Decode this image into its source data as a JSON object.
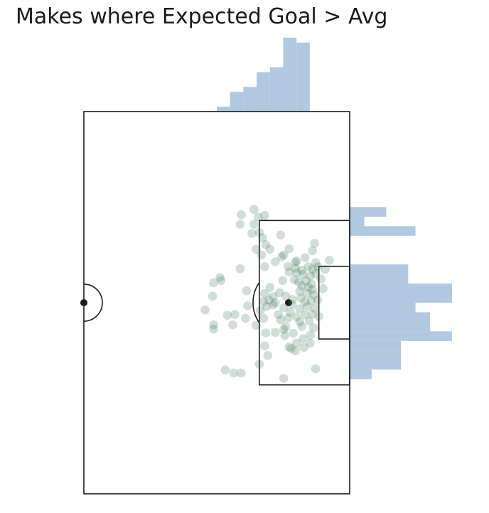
{
  "chart_data": {
    "type": "scatter",
    "title": "Makes where Expected Goal > Avg",
    "pitch": "half-pitch, attacking right",
    "colors": {
      "shots": "#2e6b4f",
      "histogram": "#b0c8e0",
      "lines": "#1a1a1a"
    },
    "xlim": [
      50,
      100
    ],
    "ylim": [
      0,
      100
    ],
    "xlabel": "",
    "ylabel": "",
    "grid": false,
    "points": [
      {
        "x": 79.6,
        "y": 27.0
      },
      {
        "x": 82.0,
        "y": 25.6
      },
      {
        "x": 82.8,
        "y": 27.6
      },
      {
        "x": 84.0,
        "y": 27.2
      },
      {
        "x": 81.6,
        "y": 31.9
      },
      {
        "x": 82.0,
        "y": 29.5
      },
      {
        "x": 83.0,
        "y": 31.6
      },
      {
        "x": 83.6,
        "y": 33.0
      },
      {
        "x": 84.2,
        "y": 34.8
      },
      {
        "x": 82.4,
        "y": 36.0
      },
      {
        "x": 87.0,
        "y": 32.3
      },
      {
        "x": 85.0,
        "y": 36.0
      },
      {
        "x": 87.6,
        "y": 37.5
      },
      {
        "x": 88.6,
        "y": 35.9
      },
      {
        "x": 93.0,
        "y": 36.4
      },
      {
        "x": 93.4,
        "y": 34.5
      },
      {
        "x": 87.2,
        "y": 38.0
      },
      {
        "x": 90.0,
        "y": 39.1
      },
      {
        "x": 86.0,
        "y": 39.3
      },
      {
        "x": 91.6,
        "y": 38.2
      },
      {
        "x": 89.8,
        "y": 41.0
      },
      {
        "x": 92.2,
        "y": 40.6
      },
      {
        "x": 93.0,
        "y": 41.2
      },
      {
        "x": 91.0,
        "y": 41.5
      },
      {
        "x": 94.0,
        "y": 40.6
      },
      {
        "x": 88.6,
        "y": 42.0
      },
      {
        "x": 90.0,
        "y": 42.2
      },
      {
        "x": 91.2,
        "y": 42.6
      },
      {
        "x": 92.6,
        "y": 43.0
      },
      {
        "x": 93.6,
        "y": 42.4
      },
      {
        "x": 87.4,
        "y": 44.2
      },
      {
        "x": 89.6,
        "y": 44.0
      },
      {
        "x": 90.4,
        "y": 44.6
      },
      {
        "x": 91.8,
        "y": 44.3
      },
      {
        "x": 92.8,
        "y": 45.1
      },
      {
        "x": 91.0,
        "y": 45.6
      },
      {
        "x": 92.2,
        "y": 46.0
      },
      {
        "x": 93.0,
        "y": 46.6
      },
      {
        "x": 90.6,
        "y": 47.0
      },
      {
        "x": 92.0,
        "y": 47.6
      },
      {
        "x": 86.8,
        "y": 47.4
      },
      {
        "x": 85.0,
        "y": 46.0
      },
      {
        "x": 84.0,
        "y": 47.6
      },
      {
        "x": 85.6,
        "y": 48.4
      },
      {
        "x": 88.0,
        "y": 48.3
      },
      {
        "x": 89.2,
        "y": 49.2
      },
      {
        "x": 90.8,
        "y": 48.8
      },
      {
        "x": 93.2,
        "y": 47.9
      },
      {
        "x": 91.6,
        "y": 49.8
      },
      {
        "x": 92.8,
        "y": 49.5
      },
      {
        "x": 94.0,
        "y": 49.3
      },
      {
        "x": 95.0,
        "y": 46.3
      },
      {
        "x": 94.6,
        "y": 43.8
      },
      {
        "x": 95.4,
        "y": 41.3
      },
      {
        "x": 96.2,
        "y": 38.9
      },
      {
        "x": 93.6,
        "y": 39.5
      },
      {
        "x": 84.4,
        "y": 51.0
      },
      {
        "x": 83.2,
        "y": 52.0
      },
      {
        "x": 85.6,
        "y": 50.6
      },
      {
        "x": 87.6,
        "y": 51.3
      },
      {
        "x": 89.2,
        "y": 50.5
      },
      {
        "x": 90.6,
        "y": 51.6
      },
      {
        "x": 92.0,
        "y": 51.0
      },
      {
        "x": 93.4,
        "y": 51.5
      },
      {
        "x": 91.6,
        "y": 53.2
      },
      {
        "x": 90.0,
        "y": 53.7
      },
      {
        "x": 88.4,
        "y": 54.0
      },
      {
        "x": 87.0,
        "y": 54.5
      },
      {
        "x": 86.6,
        "y": 53.1
      },
      {
        "x": 88.8,
        "y": 52.5
      },
      {
        "x": 93.0,
        "y": 53.0
      },
      {
        "x": 94.2,
        "y": 53.6
      },
      {
        "x": 92.4,
        "y": 54.8
      },
      {
        "x": 90.6,
        "y": 55.0
      },
      {
        "x": 93.2,
        "y": 56.6
      },
      {
        "x": 91.0,
        "y": 56.2
      },
      {
        "x": 88.0,
        "y": 56.3
      },
      {
        "x": 87.6,
        "y": 57.0
      },
      {
        "x": 86.0,
        "y": 57.8
      },
      {
        "x": 87.8,
        "y": 58.6
      },
      {
        "x": 89.4,
        "y": 58.0
      },
      {
        "x": 91.2,
        "y": 59.4
      },
      {
        "x": 92.6,
        "y": 58.5
      },
      {
        "x": 90.0,
        "y": 60.6
      },
      {
        "x": 88.6,
        "y": 61.6
      },
      {
        "x": 89.8,
        "y": 62.6
      },
      {
        "x": 91.4,
        "y": 61.7
      },
      {
        "x": 92.6,
        "y": 60.6
      },
      {
        "x": 80.6,
        "y": 46.9
      },
      {
        "x": 83.8,
        "y": 49.7
      },
      {
        "x": 84.8,
        "y": 49.3
      },
      {
        "x": 86.0,
        "y": 50.0
      },
      {
        "x": 74.4,
        "y": 44.8
      },
      {
        "x": 75.6,
        "y": 43.4
      },
      {
        "x": 75.8,
        "y": 44.2
      },
      {
        "x": 74.2,
        "y": 48.3
      },
      {
        "x": 72.8,
        "y": 51.9
      },
      {
        "x": 77.0,
        "y": 53.3
      },
      {
        "x": 78.4,
        "y": 53.1
      },
      {
        "x": 74.4,
        "y": 56.9
      },
      {
        "x": 74.4,
        "y": 55.8
      },
      {
        "x": 78.0,
        "y": 55.8
      },
      {
        "x": 80.8,
        "y": 50.8
      },
      {
        "x": 80.4,
        "y": 54.1
      },
      {
        "x": 82.4,
        "y": 55.9
      },
      {
        "x": 83.8,
        "y": 54.1
      },
      {
        "x": 84.2,
        "y": 57.9
      },
      {
        "x": 79.4,
        "y": 41.1
      },
      {
        "x": 84.0,
        "y": 40.6
      },
      {
        "x": 83.4,
        "y": 37.5
      },
      {
        "x": 88.4,
        "y": 40.5
      },
      {
        "x": 89.8,
        "y": 39.4
      },
      {
        "x": 79.4,
        "y": 29.5
      },
      {
        "x": 84.0,
        "y": 61.3
      },
      {
        "x": 84.6,
        "y": 63.8
      },
      {
        "x": 83.0,
        "y": 66.1
      },
      {
        "x": 76.6,
        "y": 67.6
      },
      {
        "x": 78.2,
        "y": 68.4
      },
      {
        "x": 79.6,
        "y": 68.4
      },
      {
        "x": 87.6,
        "y": 69.8
      },
      {
        "x": 89.0,
        "y": 62.0
      },
      {
        "x": 93.6,
        "y": 67.3
      }
    ],
    "histogram_x": {
      "bin_edges": [
        75,
        77.5,
        80,
        82.5,
        85,
        87.5,
        90,
        92.5
      ],
      "values": [
        1,
        4,
        5,
        8,
        9,
        15,
        14
      ]
    },
    "histogram_y": {
      "bin_edges": [
        25,
        27.5,
        30,
        32.5,
        35,
        37.5,
        40,
        42.5,
        45,
        47.5,
        50,
        52.5,
        55,
        57.5,
        60,
        62.5,
        65,
        67.5,
        70
      ],
      "values": [
        5,
        2,
        9,
        0,
        0,
        0,
        8,
        8,
        14,
        14,
        9,
        11,
        11,
        14,
        7,
        7,
        7,
        3
      ]
    }
  }
}
